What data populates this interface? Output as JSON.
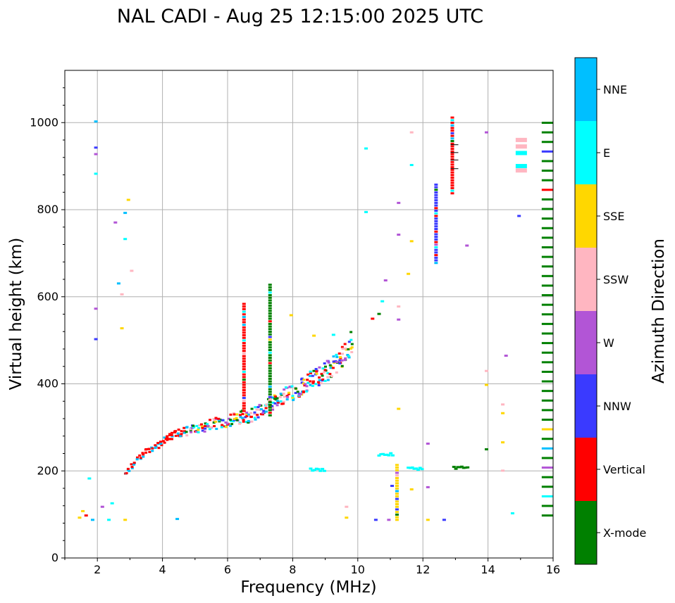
{
  "chart_data": {
    "type": "scatter",
    "title": "NAL CADI - Aug 25 12:15:00 2025 UTC",
    "xlabel": "Frequency (MHz)",
    "ylabel": "Virtual height (km)",
    "xlim": [
      1,
      16
    ],
    "ylim": [
      0,
      1120
    ],
    "xticks": [
      2,
      4,
      6,
      8,
      10,
      12,
      14,
      16
    ],
    "yticks": [
      0,
      200,
      400,
      600,
      800,
      1000
    ],
    "grid": true,
    "colorbar": {
      "title": "Azimuth Direction",
      "categories": [
        {
          "name": "X-mode",
          "color": "#008000"
        },
        {
          "name": "Vertical",
          "color": "#ff0000"
        },
        {
          "name": "NNW",
          "color": "#3a3aff"
        },
        {
          "name": "W",
          "color": "#b255d6"
        },
        {
          "name": "SSW",
          "color": "#ffb6c1"
        },
        {
          "name": "SSE",
          "color": "#ffd700"
        },
        {
          "name": "E",
          "color": "#00ffff"
        },
        {
          "name": "NNE",
          "color": "#00bfff"
        }
      ]
    },
    "main_trace": [
      {
        "f": 2.8,
        "h": 195
      },
      {
        "f": 3.0,
        "h": 215
      },
      {
        "f": 3.2,
        "h": 232
      },
      {
        "f": 3.5,
        "h": 252
      },
      {
        "f": 3.8,
        "h": 262
      },
      {
        "f": 4.0,
        "h": 272
      },
      {
        "f": 4.3,
        "h": 285
      },
      {
        "f": 4.6,
        "h": 292
      },
      {
        "f": 5.0,
        "h": 300
      },
      {
        "f": 5.4,
        "h": 307
      },
      {
        "f": 5.8,
        "h": 315
      },
      {
        "f": 6.2,
        "h": 322
      },
      {
        "f": 6.6,
        "h": 330
      },
      {
        "f": 7.0,
        "h": 342
      },
      {
        "f": 7.4,
        "h": 358
      },
      {
        "f": 7.8,
        "h": 378
      },
      {
        "f": 8.2,
        "h": 398
      },
      {
        "f": 8.6,
        "h": 415
      },
      {
        "f": 9.0,
        "h": 432
      },
      {
        "f": 9.4,
        "h": 460
      },
      {
        "f": 9.8,
        "h": 505
      }
    ],
    "spur_traces": [
      {
        "f": 6.5,
        "h_min": 340,
        "h_max": 590,
        "azimuth": "Vertical"
      },
      {
        "f": 7.3,
        "h_min": 330,
        "h_max": 630,
        "azimuth": "X-mode"
      },
      {
        "f": 11.2,
        "h_min": 90,
        "h_max": 220,
        "azimuth": "SSE"
      },
      {
        "f": 12.4,
        "h_min": 680,
        "h_max": 860,
        "azimuth": "NNW"
      },
      {
        "f": 12.9,
        "h_min": 840,
        "h_max": 1015,
        "azimuth": "Vertical"
      },
      {
        "f": 15.7,
        "h_min": 100,
        "h_max": 1015,
        "azimuth": "X-mode"
      }
    ],
    "low_layer": [
      {
        "f": 8.5,
        "h": 205,
        "azimuth": "E"
      },
      {
        "f": 10.6,
        "h": 240,
        "azimuth": "E"
      },
      {
        "f": 11.5,
        "h": 208,
        "azimuth": "E"
      },
      {
        "f": 12.9,
        "h": 210,
        "azimuth": "X-mode"
      }
    ]
  }
}
